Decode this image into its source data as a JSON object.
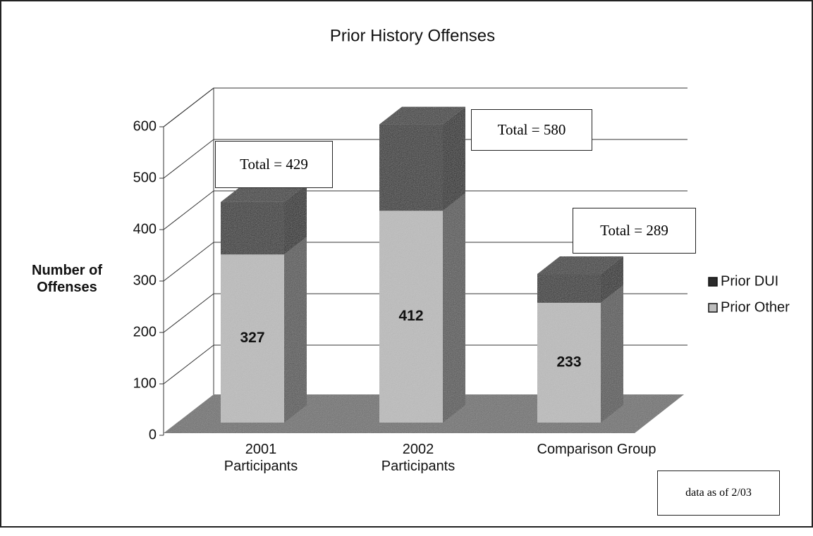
{
  "chart_data": {
    "type": "bar3d_stacked",
    "title": "Prior History Offenses",
    "y_label": "Number of\nOffenses",
    "categories": [
      "2001\nParticipants",
      "2002\nParticipants",
      "Comparison Group"
    ],
    "series": [
      {
        "name": "Prior Other",
        "color": "#bdbdbd",
        "values": [
          327,
          412,
          233
        ]
      },
      {
        "name": "Prior DUI",
        "color": "#2b2b2b",
        "values": [
          102,
          168,
          56
        ]
      }
    ],
    "annotations": [
      "Total = 429",
      "Total = 580",
      "Total = 289"
    ],
    "note": "data as of 2/03",
    "ylim": [
      0,
      600
    ],
    "yticks": [
      0,
      100,
      200,
      300,
      400,
      500,
      600
    ],
    "grid": true
  }
}
